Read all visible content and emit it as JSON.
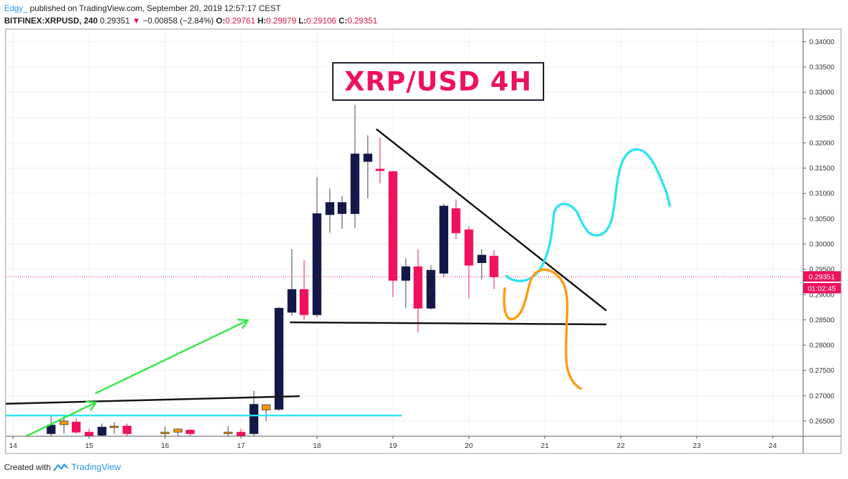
{
  "header": {
    "author": "Edgy_",
    "published": " published on TradingView.com, September 20, 2019 12:57:17 CEST",
    "symbol": "BITFINEX:XRPUSD, 240",
    "last": "0.29351",
    "change_arrow": "▼",
    "change": "−0.00858 (−2.84%)",
    "o_label": "O:",
    "o": "0.29761",
    "h_label": "H:",
    "h": "0.29879",
    "l_label": "L:",
    "l": "0.29106",
    "c_label": "C:",
    "c": "0.29351"
  },
  "footer": {
    "created_with": "Created with",
    "brand": "TradingView"
  },
  "annotation_title": "XRP/USD 4H",
  "colors": {
    "bull": "#131849",
    "bear": "#f0115d",
    "small_bull": "#ff9800",
    "trendline": "#111111",
    "cyan": "#2fe4f0",
    "orange": "#ff9b10",
    "green": "#37e646",
    "price_tag": "#f0115d"
  },
  "chart_data": {
    "type": "candlestick",
    "x_ticks": [
      "14",
      "15",
      "16",
      "17",
      "18",
      "19",
      "20",
      "21",
      "22",
      "23",
      "24"
    ],
    "y_ticks": [
      "0.34000",
      "0.33500",
      "0.33000",
      "0.32500",
      "0.32000",
      "0.31500",
      "0.31000",
      "0.30500",
      "0.30000",
      "0.29500",
      "0.29000",
      "0.28500",
      "0.28000",
      "0.27500",
      "0.27000",
      "0.26500"
    ],
    "ylim": [
      0.262,
      0.3425
    ],
    "xlim": [
      13.9,
      24.4
    ],
    "last_price_label": "0.29351",
    "countdown_label": "01:02:45",
    "last_price": 0.29351,
    "candles": [
      {
        "t": 14.5,
        "o": 0.2625,
        "h": 0.266,
        "l": 0.262,
        "c": 0.2642
      },
      {
        "t": 14.67,
        "o": 0.2643,
        "h": 0.266,
        "l": 0.2625,
        "c": 0.265
      },
      {
        "t": 14.83,
        "o": 0.2648,
        "h": 0.2655,
        "l": 0.2625,
        "c": 0.2628
      },
      {
        "t": 15.0,
        "o": 0.2628,
        "h": 0.2635,
        "l": 0.2615,
        "c": 0.2618
      },
      {
        "t": 15.17,
        "o": 0.2622,
        "h": 0.2645,
        "l": 0.2615,
        "c": 0.2638
      },
      {
        "t": 15.33,
        "o": 0.2638,
        "h": 0.2648,
        "l": 0.2625,
        "c": 0.264
      },
      {
        "t": 15.5,
        "o": 0.264,
        "h": 0.2645,
        "l": 0.262,
        "c": 0.2625
      },
      {
        "t": 16.0,
        "o": 0.2625,
        "h": 0.264,
        "l": 0.2615,
        "c": 0.2628
      },
      {
        "t": 16.17,
        "o": 0.2628,
        "h": 0.2635,
        "l": 0.262,
        "c": 0.2634
      },
      {
        "t": 16.33,
        "o": 0.2632,
        "h": 0.2634,
        "l": 0.262,
        "c": 0.2625
      },
      {
        "t": 16.83,
        "o": 0.2625,
        "h": 0.264,
        "l": 0.2618,
        "c": 0.2628
      },
      {
        "t": 17.0,
        "o": 0.2628,
        "h": 0.2635,
        "l": 0.2615,
        "c": 0.262
      },
      {
        "t": 17.17,
        "o": 0.2625,
        "h": 0.271,
        "l": 0.262,
        "c": 0.2683
      },
      {
        "t": 17.33,
        "o": 0.2672,
        "h": 0.2683,
        "l": 0.265,
        "c": 0.2682
      },
      {
        "t": 17.5,
        "o": 0.2673,
        "h": 0.2875,
        "l": 0.267,
        "c": 0.2873
      },
      {
        "t": 17.67,
        "o": 0.2865,
        "h": 0.299,
        "l": 0.2858,
        "c": 0.291
      },
      {
        "t": 17.83,
        "o": 0.291,
        "h": 0.2968,
        "l": 0.285,
        "c": 0.286
      },
      {
        "t": 18.0,
        "o": 0.286,
        "h": 0.3132,
        "l": 0.2855,
        "c": 0.306
      },
      {
        "t": 18.17,
        "o": 0.3058,
        "h": 0.311,
        "l": 0.3022,
        "c": 0.3082
      },
      {
        "t": 18.33,
        "o": 0.306,
        "h": 0.3095,
        "l": 0.303,
        "c": 0.3082
      },
      {
        "t": 18.5,
        "o": 0.306,
        "h": 0.3275,
        "l": 0.3032,
        "c": 0.3178
      },
      {
        "t": 18.67,
        "o": 0.3163,
        "h": 0.3215,
        "l": 0.309,
        "c": 0.3178
      },
      {
        "t": 18.83,
        "o": 0.3148,
        "h": 0.321,
        "l": 0.312,
        "c": 0.3145
      },
      {
        "t": 19.0,
        "o": 0.3143,
        "h": 0.3145,
        "l": 0.2895,
        "c": 0.2928
      },
      {
        "t": 19.17,
        "o": 0.2928,
        "h": 0.2972,
        "l": 0.2873,
        "c": 0.2955
      },
      {
        "t": 19.33,
        "o": 0.2955,
        "h": 0.299,
        "l": 0.2825,
        "c": 0.2873
      },
      {
        "t": 19.5,
        "o": 0.2873,
        "h": 0.2958,
        "l": 0.287,
        "c": 0.2948
      },
      {
        "t": 19.67,
        "o": 0.2942,
        "h": 0.308,
        "l": 0.2935,
        "c": 0.3075
      },
      {
        "t": 19.83,
        "o": 0.307,
        "h": 0.3088,
        "l": 0.301,
        "c": 0.3022
      },
      {
        "t": 20.0,
        "o": 0.3028,
        "h": 0.3035,
        "l": 0.2893,
        "c": 0.2958
      },
      {
        "t": 20.17,
        "o": 0.2963,
        "h": 0.299,
        "l": 0.293,
        "c": 0.2978
      },
      {
        "t": 20.33,
        "o": 0.2976,
        "h": 0.2988,
        "l": 0.2911,
        "c": 0.2935
      }
    ]
  }
}
